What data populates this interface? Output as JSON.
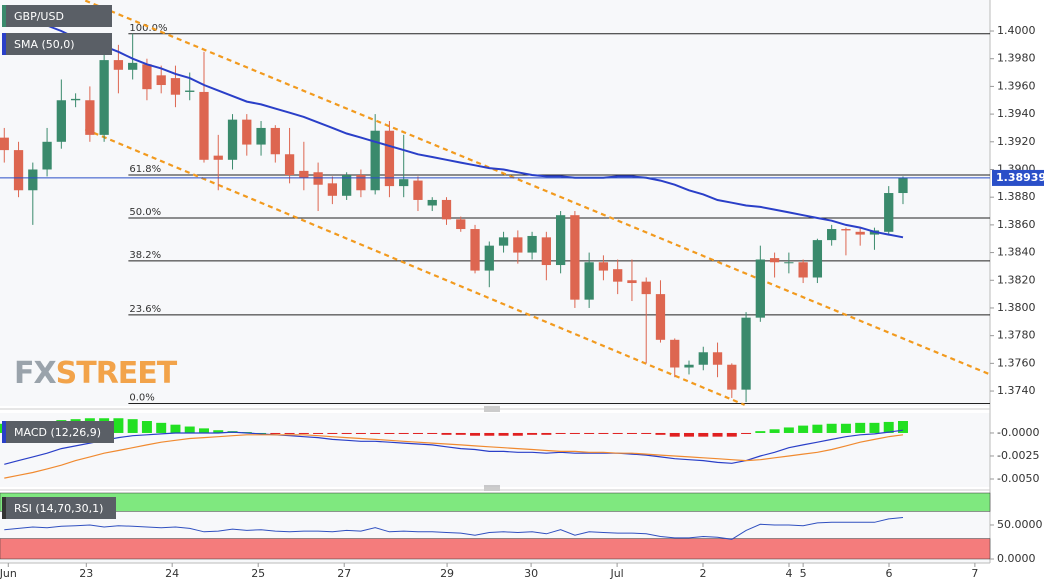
{
  "chart_data": [
    {
      "type": "candlestick",
      "title": "GBP/USD",
      "up_color": "#3a8a6c",
      "down_color": "#dd6650",
      "xlim": [
        -0.3,
        69.1
      ],
      "ylim": [
        1.37292,
        1.40224
      ],
      "yticks": [
        {
          "value": 1.374,
          "label": "1.3740"
        },
        {
          "value": 1.376,
          "label": "1.3760"
        },
        {
          "value": 1.378,
          "label": "1.3780"
        },
        {
          "value": 1.38,
          "label": "1.3800"
        },
        {
          "value": 1.382,
          "label": "1.3820"
        },
        {
          "value": 1.384,
          "label": "1.3840"
        },
        {
          "value": 1.386,
          "label": "1.3860"
        },
        {
          "value": 1.388,
          "label": "1.3880"
        },
        {
          "value": 1.39,
          "label": "1.3900"
        },
        {
          "value": 1.392,
          "label": "1.3920"
        },
        {
          "value": 1.394,
          "label": "1.3940"
        },
        {
          "value": 1.396,
          "label": "1.3960"
        },
        {
          "value": 1.398,
          "label": "1.3980"
        },
        {
          "value": 1.4,
          "label": "1.4000"
        }
      ],
      "open": [
        1.3923,
        1.3914,
        1.3885,
        1.39,
        1.392,
        1.395,
        1.395,
        1.3925,
        1.3979,
        1.3972,
        1.3976,
        1.3968,
        1.3966,
        1.3956,
        1.3956,
        1.391,
        1.3907,
        1.3936,
        1.3918,
        1.393,
        1.3911,
        1.3899,
        1.3898,
        1.389,
        1.3881,
        1.3896,
        1.3885,
        1.3928,
        1.3888,
        1.3892,
        1.3874,
        1.3878,
        1.3864,
        1.3857,
        1.3827,
        1.3845,
        1.3851,
        1.384,
        1.3851,
        1.3831,
        1.3867,
        1.3806,
        1.3833,
        1.3828,
        1.382,
        1.3819,
        1.381,
        1.3777,
        1.3757,
        1.3759,
        1.3768,
        1.3759,
        1.3741,
        1.3793,
        1.3836,
        1.3833,
        1.3833,
        1.3822,
        1.3849,
        1.3857,
        1.3855,
        1.3853,
        1.3855,
        1.3883
      ],
      "high": [
        1.393,
        1.392,
        1.3905,
        1.393,
        1.3965,
        1.3955,
        1.396,
        1.3985,
        1.399,
        1.3998,
        1.398,
        1.3975,
        1.3975,
        1.397,
        1.3985,
        1.3925,
        1.394,
        1.394,
        1.3935,
        1.3932,
        1.393,
        1.392,
        1.3905,
        1.3895,
        1.3898,
        1.39,
        1.394,
        1.3935,
        1.3925,
        1.3895,
        1.388,
        1.388,
        1.3866,
        1.386,
        1.3848,
        1.3855,
        1.3856,
        1.3855,
        1.3855,
        1.387,
        1.387,
        1.384,
        1.3838,
        1.3835,
        1.3835,
        1.3822,
        1.382,
        1.3778,
        1.3762,
        1.3772,
        1.3775,
        1.376,
        1.3797,
        1.3845,
        1.384,
        1.384,
        1.3835,
        1.385,
        1.386,
        1.3858,
        1.3858,
        1.3858,
        1.3888,
        1.3895
      ],
      "low": [
        1.3905,
        1.388,
        1.386,
        1.3895,
        1.3915,
        1.3945,
        1.392,
        1.392,
        1.3955,
        1.3965,
        1.395,
        1.3955,
        1.3945,
        1.395,
        1.3905,
        1.3885,
        1.39,
        1.391,
        1.391,
        1.3905,
        1.389,
        1.3885,
        1.387,
        1.3875,
        1.3878,
        1.388,
        1.3882,
        1.388,
        1.388,
        1.387,
        1.387,
        1.386,
        1.3855,
        1.3825,
        1.3815,
        1.384,
        1.3832,
        1.3835,
        1.382,
        1.3825,
        1.38,
        1.38,
        1.382,
        1.381,
        1.3805,
        1.376,
        1.3775,
        1.375,
        1.3752,
        1.3755,
        1.375,
        1.3735,
        1.3732,
        1.379,
        1.3822,
        1.3825,
        1.3818,
        1.3818,
        1.3845,
        1.3838,
        1.3845,
        1.3842,
        1.3853,
        1.3875
      ],
      "close": [
        1.3914,
        1.3885,
        1.39,
        1.392,
        1.395,
        1.3951,
        1.3925,
        1.3979,
        1.3972,
        1.3977,
        1.3958,
        1.3961,
        1.3954,
        1.3957,
        1.3907,
        1.3907,
        1.3936,
        1.3918,
        1.393,
        1.3911,
        1.3896,
        1.3894,
        1.3889,
        1.3881,
        1.3896,
        1.3885,
        1.3928,
        1.3888,
        1.3893,
        1.3878,
        1.3878,
        1.3864,
        1.3857,
        1.3827,
        1.3845,
        1.3851,
        1.384,
        1.3852,
        1.3831,
        1.3867,
        1.3806,
        1.3833,
        1.3827,
        1.3819,
        1.3818,
        1.381,
        1.3777,
        1.3757,
        1.3759,
        1.3768,
        1.3759,
        1.3741,
        1.3793,
        1.3835,
        1.3833,
        1.3833,
        1.3822,
        1.3849,
        1.3857,
        1.3856,
        1.3853,
        1.3856,
        1.3883,
        1.3894
      ],
      "overlays": [
        {
          "name": "SMA (50,0)",
          "color": "#2a3fc8",
          "values": [
            1.4018,
            1.4013,
            1.4009,
            1.4004,
            1.4,
            1.3995,
            1.3991,
            1.3989,
            1.3985,
            1.398,
            1.3976,
            1.3973,
            1.3969,
            1.3966,
            1.3961,
            1.3957,
            1.3953,
            1.3949,
            1.3947,
            1.3944,
            1.3941,
            1.3938,
            1.3934,
            1.393,
            1.3926,
            1.3923,
            1.392,
            1.3917,
            1.3914,
            1.3911,
            1.3909,
            1.3907,
            1.3905,
            1.3903,
            1.3901,
            1.39,
            1.3898,
            1.3896,
            1.3895,
            1.3895,
            1.3894,
            1.3894,
            1.3894,
            1.3895,
            1.3895,
            1.3894,
            1.3892,
            1.3889,
            1.3885,
            1.3882,
            1.3878,
            1.3876,
            1.3874,
            1.3873,
            1.3871,
            1.3869,
            1.3867,
            1.3865,
            1.3863,
            1.386,
            1.3858,
            1.3855,
            1.3853,
            1.3851
          ]
        }
      ],
      "fib_levels": [
        {
          "label": "100.0%",
          "value": 1.3998
        },
        {
          "label": "61.8%",
          "value": 1.3896
        },
        {
          "label": "50.0%",
          "value": 1.3865
        },
        {
          "label": "38.2%",
          "value": 1.3834
        },
        {
          "label": "23.6%",
          "value": 1.3795
        },
        {
          "label": "0.0%",
          "value": 1.3731
        }
      ],
      "fib_start": 8.7,
      "trend_lines": [
        {
          "color": "#f29a1e",
          "points": [
            [
              5.68,
              1.4022
            ],
            [
              69.1,
              1.3752
            ]
          ]
        },
        {
          "color": "#f29a1e",
          "points": [
            [
              5.68,
              1.3929
            ],
            [
              51.9,
              1.373
            ]
          ]
        }
      ],
      "last_price": 1.38939,
      "last_price_color": "#2a4fc8",
      "watermark": [
        "FX",
        "STREET"
      ]
    },
    {
      "type": "macd",
      "title": "MACD (12,26,9)",
      "up_color": "#22e022",
      "down_color": "#e02020",
      "xlim": [
        -0.3,
        69.1
      ],
      "ylim": [
        -0.00587,
        0.00217
      ],
      "yticks": [
        {
          "value": 0,
          "label": "-0.0000"
        },
        {
          "value": -0.0025,
          "label": "-0.0025"
        },
        {
          "value": -0.005,
          "label": "-0.0050"
        }
      ],
      "histogram": [
        0.001,
        0.0011,
        0.0012,
        0.0013,
        0.0014,
        0.0015,
        0.0016,
        0.0016,
        0.0016,
        0.0015,
        0.0013,
        0.0011,
        0.0009,
        0.0007,
        0.0005,
        0.0003,
        0.0002,
        0.0001,
        0,
        -0.0001,
        -0.0001,
        -0.0001,
        -0.0001,
        -0.0001,
        -0.0001,
        -0.0001,
        -0.0001,
        -0.0001,
        -0.0001,
        -0.0001,
        -0.0001,
        -0.0002,
        -0.0002,
        -0.0003,
        -0.0003,
        -0.0003,
        -0.0003,
        -0.0002,
        -0.0002,
        -0.0001,
        -0.0001,
        -0.0001,
        -0.0001,
        -0.0001,
        -0.0001,
        -0.0001,
        -0.0002,
        -0.0004,
        -0.0004,
        -0.0004,
        -0.0004,
        -0.0004,
        -0.0001,
        0.0002,
        0.0004,
        0.0006,
        0.0008,
        0.0009,
        0.001,
        0.001,
        0.0011,
        0.0011,
        0.0012,
        0.0013
      ],
      "series": [
        {
          "color": "#2a3fc8",
          "values": [
            -0.0034,
            -0.003,
            -0.0026,
            -0.0022,
            -0.0017,
            -0.0014,
            -0.0011,
            -0.0008,
            -0.0005,
            -0.0003,
            -0.0002,
            -0.0001,
            0,
            0,
            0,
            0,
            0.0001,
            0,
            -0.0001,
            -0.0002,
            -0.0003,
            -0.0004,
            -0.0005,
            -0.0007,
            -0.0008,
            -0.0009,
            -0.0009,
            -0.001,
            -0.0011,
            -0.0012,
            -0.0013,
            -0.0015,
            -0.0017,
            -0.0018,
            -0.002,
            -0.002,
            -0.0021,
            -0.0021,
            -0.0022,
            -0.0021,
            -0.0022,
            -0.0022,
            -0.0022,
            -0.0022,
            -0.0023,
            -0.0024,
            -0.0026,
            -0.0028,
            -0.0029,
            -0.003,
            -0.0032,
            -0.0033,
            -0.003,
            -0.0025,
            -0.0021,
            -0.0016,
            -0.0013,
            -0.001,
            -0.0007,
            -0.0004,
            -0.0002,
            -0.0001,
            0.0001,
            0.0003
          ]
        },
        {
          "color": "#f08a30",
          "values": [
            -0.0049,
            -0.0046,
            -0.0043,
            -0.0039,
            -0.0035,
            -0.003,
            -0.0026,
            -0.0022,
            -0.0019,
            -0.0016,
            -0.0013,
            -0.001,
            -0.0008,
            -0.0006,
            -0.0005,
            -0.0004,
            -0.0003,
            -0.0002,
            -0.0002,
            -0.0002,
            -0.0002,
            -0.0002,
            -0.0003,
            -0.0004,
            -0.0005,
            -0.0006,
            -0.0007,
            -0.0008,
            -0.0009,
            -0.001,
            -0.0011,
            -0.0012,
            -0.0013,
            -0.0014,
            -0.0015,
            -0.0016,
            -0.0017,
            -0.0018,
            -0.0019,
            -0.002,
            -0.002,
            -0.0021,
            -0.0021,
            -0.0022,
            -0.0022,
            -0.0023,
            -0.0024,
            -0.0025,
            -0.0026,
            -0.0027,
            -0.0028,
            -0.0029,
            -0.003,
            -0.0029,
            -0.0027,
            -0.0025,
            -0.0023,
            -0.0021,
            -0.0018,
            -0.0014,
            -0.001,
            -0.0007,
            -0.0004,
            -0.0002
          ]
        }
      ]
    },
    {
      "type": "rsi",
      "title": "RSI (14,70,30,1)",
      "color": "#3050c0",
      "xlim": [
        -0.3,
        69.1
      ],
      "ylim": [
        -5.9,
        97
      ],
      "yticks": [
        {
          "value": 50,
          "label": "50.0000"
        },
        {
          "value": 0,
          "label": "0.0000"
        }
      ],
      "bands": [
        {
          "from": 70,
          "to": 97,
          "color": "#7fe87f"
        },
        {
          "from": 0,
          "to": 30,
          "color": "#f47c7c"
        }
      ],
      "values": [
        43,
        45,
        47,
        46,
        48,
        49,
        50,
        47,
        49,
        48,
        47,
        46,
        47,
        45,
        40,
        41,
        44,
        42,
        43,
        41,
        40,
        41,
        41,
        40,
        42,
        41,
        46,
        40,
        41,
        40,
        40,
        39,
        38,
        35,
        39,
        40,
        39,
        40,
        37,
        43,
        35,
        40,
        39,
        38,
        38,
        37,
        33,
        31,
        31,
        33,
        32,
        29,
        42,
        51,
        50,
        50,
        49,
        53,
        54,
        54,
        54,
        54,
        59,
        61
      ],
      "xticks": [
        {
          "value": 0.28,
          "label": "Jun"
        },
        {
          "value": 5.75,
          "label": "23"
        },
        {
          "value": 11.77,
          "label": "24"
        },
        {
          "value": 17.8,
          "label": "25"
        },
        {
          "value": 23.83,
          "label": "27"
        },
        {
          "value": 31.04,
          "label": "29"
        },
        {
          "value": 36.93,
          "label": "30"
        },
        {
          "value": 42.96,
          "label": "Jul"
        },
        {
          "value": 48.98,
          "label": "2"
        },
        {
          "value": 55.01,
          "label": "4"
        },
        {
          "value": 56.0,
          "label": "5"
        },
        {
          "value": 62.02,
          "label": "6"
        },
        {
          "value": 68.04,
          "label": "7"
        }
      ]
    }
  ]
}
